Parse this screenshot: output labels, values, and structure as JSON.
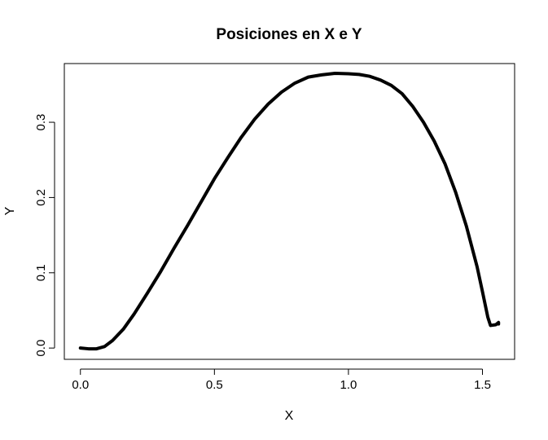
{
  "chart_data": {
    "type": "line",
    "title": "Posiciones en X e Y",
    "xlabel": "X",
    "ylabel": "Y",
    "xlim": [
      -0.06,
      1.62
    ],
    "ylim": [
      -0.015,
      0.378
    ],
    "x_ticks": [
      0.0,
      0.5,
      1.0,
      1.5
    ],
    "x_tick_labels": [
      "0.0",
      "0.5",
      "1.0",
      "1.5"
    ],
    "y_ticks": [
      0.0,
      0.1,
      0.2,
      0.3
    ],
    "y_tick_labels": [
      "0.0",
      "0.1",
      "0.2",
      "0.3"
    ],
    "grid": false,
    "line_color": "#000000",
    "series": [
      {
        "x": [
          0.0,
          0.03,
          0.06,
          0.09,
          0.12,
          0.16,
          0.2,
          0.25,
          0.3,
          0.35,
          0.4,
          0.45,
          0.5,
          0.55,
          0.6,
          0.65,
          0.7,
          0.75,
          0.8,
          0.85,
          0.9,
          0.95,
          1.0,
          1.04,
          1.08,
          1.12,
          1.16,
          1.2,
          1.24,
          1.28,
          1.32,
          1.36,
          1.4,
          1.44,
          1.48,
          1.5,
          1.52,
          1.53,
          1.55,
          1.56,
          1.56
        ],
        "y": [
          0.0,
          -0.001,
          -0.001,
          0.002,
          0.01,
          0.025,
          0.045,
          0.073,
          0.102,
          0.133,
          0.163,
          0.194,
          0.225,
          0.253,
          0.28,
          0.304,
          0.324,
          0.34,
          0.352,
          0.36,
          0.363,
          0.365,
          0.3645,
          0.3635,
          0.361,
          0.356,
          0.349,
          0.338,
          0.321,
          0.3,
          0.275,
          0.245,
          0.207,
          0.162,
          0.108,
          0.075,
          0.041,
          0.03,
          0.031,
          0.034,
          0.032
        ]
      }
    ]
  }
}
